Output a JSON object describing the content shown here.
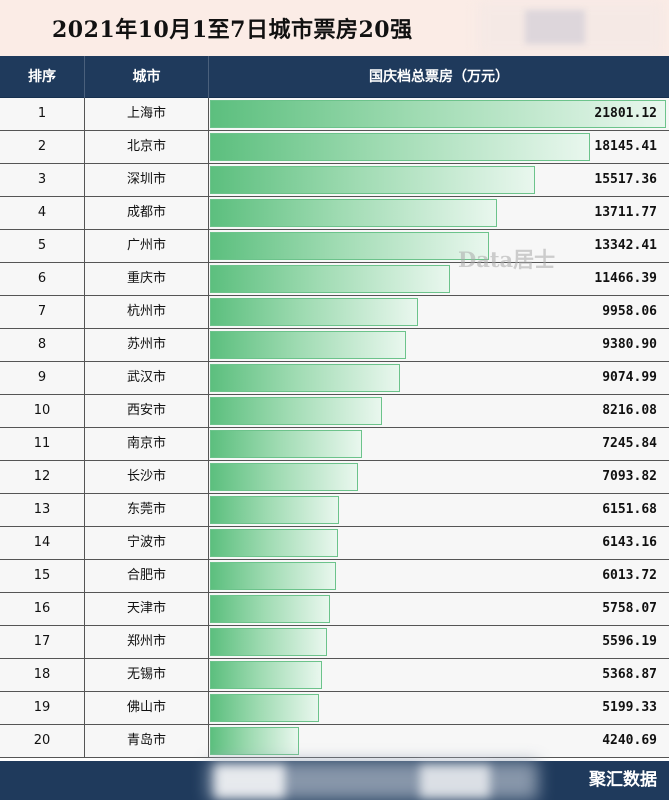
{
  "header": {
    "title": "2021年10月1至7日城市票房20强"
  },
  "table": {
    "columns": [
      "排序",
      "城市",
      "国庆档总票房（万元）"
    ]
  },
  "watermark": "Data居士",
  "footer": {
    "brand": "聚汇数据"
  },
  "chart_data": {
    "type": "bar",
    "title": "2021年10月1至7日城市票房20强",
    "xlabel": "",
    "ylabel": "国庆档总票房（万元）",
    "ylim": [
      0,
      21801.12
    ],
    "ranks": [
      "1",
      "2",
      "3",
      "4",
      "5",
      "6",
      "7",
      "8",
      "9",
      "10",
      "11",
      "12",
      "13",
      "14",
      "15",
      "16",
      "17",
      "18",
      "19",
      "20"
    ],
    "categories": [
      "上海市",
      "北京市",
      "深圳市",
      "成都市",
      "广州市",
      "重庆市",
      "杭州市",
      "苏州市",
      "武汉市",
      "西安市",
      "南京市",
      "长沙市",
      "东莞市",
      "宁波市",
      "合肥市",
      "天津市",
      "郑州市",
      "无锡市",
      "佛山市",
      "青岛市"
    ],
    "values": [
      21801.12,
      18145.41,
      15517.36,
      13711.77,
      13342.41,
      11466.39,
      9958.06,
      9380.9,
      9074.99,
      8216.08,
      7245.84,
      7093.82,
      6151.68,
      6143.16,
      6013.72,
      5758.07,
      5596.19,
      5368.87,
      5199.33,
      4240.69
    ],
    "labels": [
      "21801.12",
      "18145.41",
      "15517.36",
      "13711.77",
      "13342.41",
      "11466.39",
      "9958.06",
      "9380.90",
      "9074.99",
      "8216.08",
      "7245.84",
      "7093.82",
      "6151.68",
      "6143.16",
      "6013.72",
      "5758.07",
      "5596.19",
      "5368.87",
      "5199.33",
      "4240.69"
    ],
    "colors": {
      "bar_start": "#5cbf7e",
      "bar_end": "#e9f7ee",
      "header_bg": "#1f3a5c"
    }
  }
}
